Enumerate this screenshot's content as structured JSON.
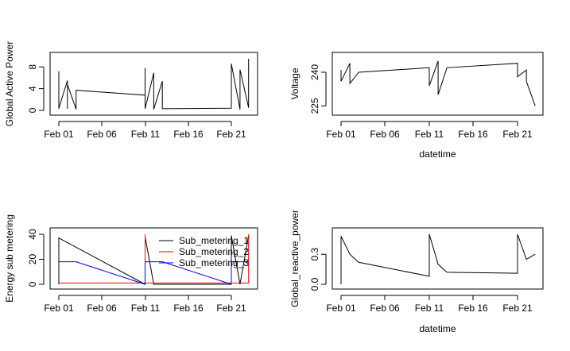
{
  "chart_data": [
    {
      "type": "line",
      "title": "",
      "xlabel": "",
      "ylabel": "Global Active Power",
      "x_tick_labels": [
        "Feb 01",
        "Feb 06",
        "Feb 11",
        "Feb 16",
        "Feb 21"
      ],
      "y_ticks": [
        0,
        4,
        8
      ],
      "ylim": [
        0,
        9.5
      ],
      "grid": false,
      "series": [
        {
          "color": "#000000",
          "x": [
            "Feb 01",
            "Feb 01",
            "Feb 01",
            "Feb 02",
            "Feb 02",
            "Feb 02",
            "Feb 03",
            "Feb 03",
            "Feb 11",
            "Feb 11",
            "Feb 11",
            "Feb 12",
            "Feb 12",
            "Feb 13",
            "Feb 13",
            "Feb 21",
            "Feb 21",
            "Feb 22",
            "Feb 22",
            "Feb 23",
            "Feb 23"
          ],
          "y": [
            0.3,
            7.2,
            0.4,
            5.5,
            0.3,
            4.8,
            0.2,
            3.7,
            2.8,
            7.8,
            0.3,
            6.9,
            0.2,
            5.4,
            0.3,
            0.4,
            8.6,
            0.2,
            7.5,
            0.5,
            9.5
          ]
        }
      ]
    },
    {
      "type": "line",
      "title": "",
      "xlabel": "datetime",
      "ylabel": "Voltage",
      "x_tick_labels": [
        "Feb 01",
        "Feb 06",
        "Feb 11",
        "Feb 16",
        "Feb 21"
      ],
      "y_ticks": [
        225,
        240
      ],
      "ylim": [
        223,
        246
      ],
      "grid": false,
      "series": [
        {
          "color": "#000000",
          "x": [
            "Feb 01",
            "Feb 01",
            "Feb 02",
            "Feb 02",
            "Feb 03",
            "Feb 11",
            "Feb 11",
            "Feb 12",
            "Feb 12",
            "Feb 13",
            "Feb 21",
            "Feb 21",
            "Feb 22",
            "Feb 22",
            "Feb 23"
          ],
          "y": [
            241,
            236,
            244,
            235,
            240,
            242,
            234,
            245,
            230,
            242,
            244,
            238,
            241,
            236,
            225
          ]
        }
      ]
    },
    {
      "type": "line",
      "title": "",
      "xlabel": "",
      "ylabel": "Energy sub metering",
      "x_tick_labels": [
        "Feb 01",
        "Feb 06",
        "Feb 11",
        "Feb 16",
        "Feb 21"
      ],
      "y_ticks": [
        0,
        20,
        40
      ],
      "ylim": [
        0,
        40
      ],
      "grid": false,
      "legend": {
        "position": "top-right",
        "entries": [
          {
            "label": "Sub_metering_1",
            "color": "#000000"
          },
          {
            "label": "Sub_metering_2",
            "color": "#ff0000"
          },
          {
            "label": "Sub_metering_3",
            "color": "#0000ff"
          }
        ]
      },
      "series": [
        {
          "name": "Sub_metering_1",
          "color": "#000000",
          "x": [
            "Feb 01",
            "Feb 01",
            "Feb 11",
            "Feb 11",
            "Feb 12",
            "Feb 21",
            "Feb 21",
            "Feb 22",
            "Feb 23"
          ],
          "y": [
            0,
            37,
            0,
            38,
            0,
            0,
            39,
            0,
            39
          ]
        },
        {
          "name": "Sub_metering_2",
          "color": "#ff0000",
          "x": [
            "Feb 01",
            "Feb 11",
            "Feb 11",
            "Feb 11",
            "Feb 21",
            "Feb 23",
            "Feb 23"
          ],
          "y": [
            1,
            1,
            40,
            1,
            1,
            1,
            40
          ]
        },
        {
          "name": "Sub_metering_3",
          "color": "#0000ff",
          "x": [
            "Feb 01",
            "Feb 02",
            "Feb 03",
            "Feb 11",
            "Feb 11",
            "Feb 12",
            "Feb 13",
            "Feb 21",
            "Feb 21",
            "Feb 22",
            "Feb 23"
          ],
          "y": [
            18,
            18,
            18,
            0,
            18,
            18,
            18,
            0,
            18,
            18,
            18
          ]
        }
      ]
    },
    {
      "type": "line",
      "title": "",
      "xlabel": "datetime",
      "ylabel": "Global_reactive_power",
      "x_tick_labels": [
        "Feb 01",
        "Feb 06",
        "Feb 11",
        "Feb 16",
        "Feb 21"
      ],
      "y_ticks": [
        0.0,
        0.3
      ],
      "y_tick_labels": [
        "0.0",
        "0.3"
      ],
      "ylim": [
        0,
        0.5
      ],
      "grid": false,
      "series": [
        {
          "color": "#000000",
          "x": [
            "Feb 01",
            "Feb 01",
            "Feb 02",
            "Feb 03",
            "Feb 11",
            "Feb 11",
            "Feb 12",
            "Feb 13",
            "Feb 21",
            "Feb 21",
            "Feb 22",
            "Feb 23"
          ],
          "y": [
            0.0,
            0.48,
            0.3,
            0.22,
            0.08,
            0.5,
            0.2,
            0.12,
            0.11,
            0.5,
            0.25,
            0.3
          ]
        }
      ]
    }
  ]
}
